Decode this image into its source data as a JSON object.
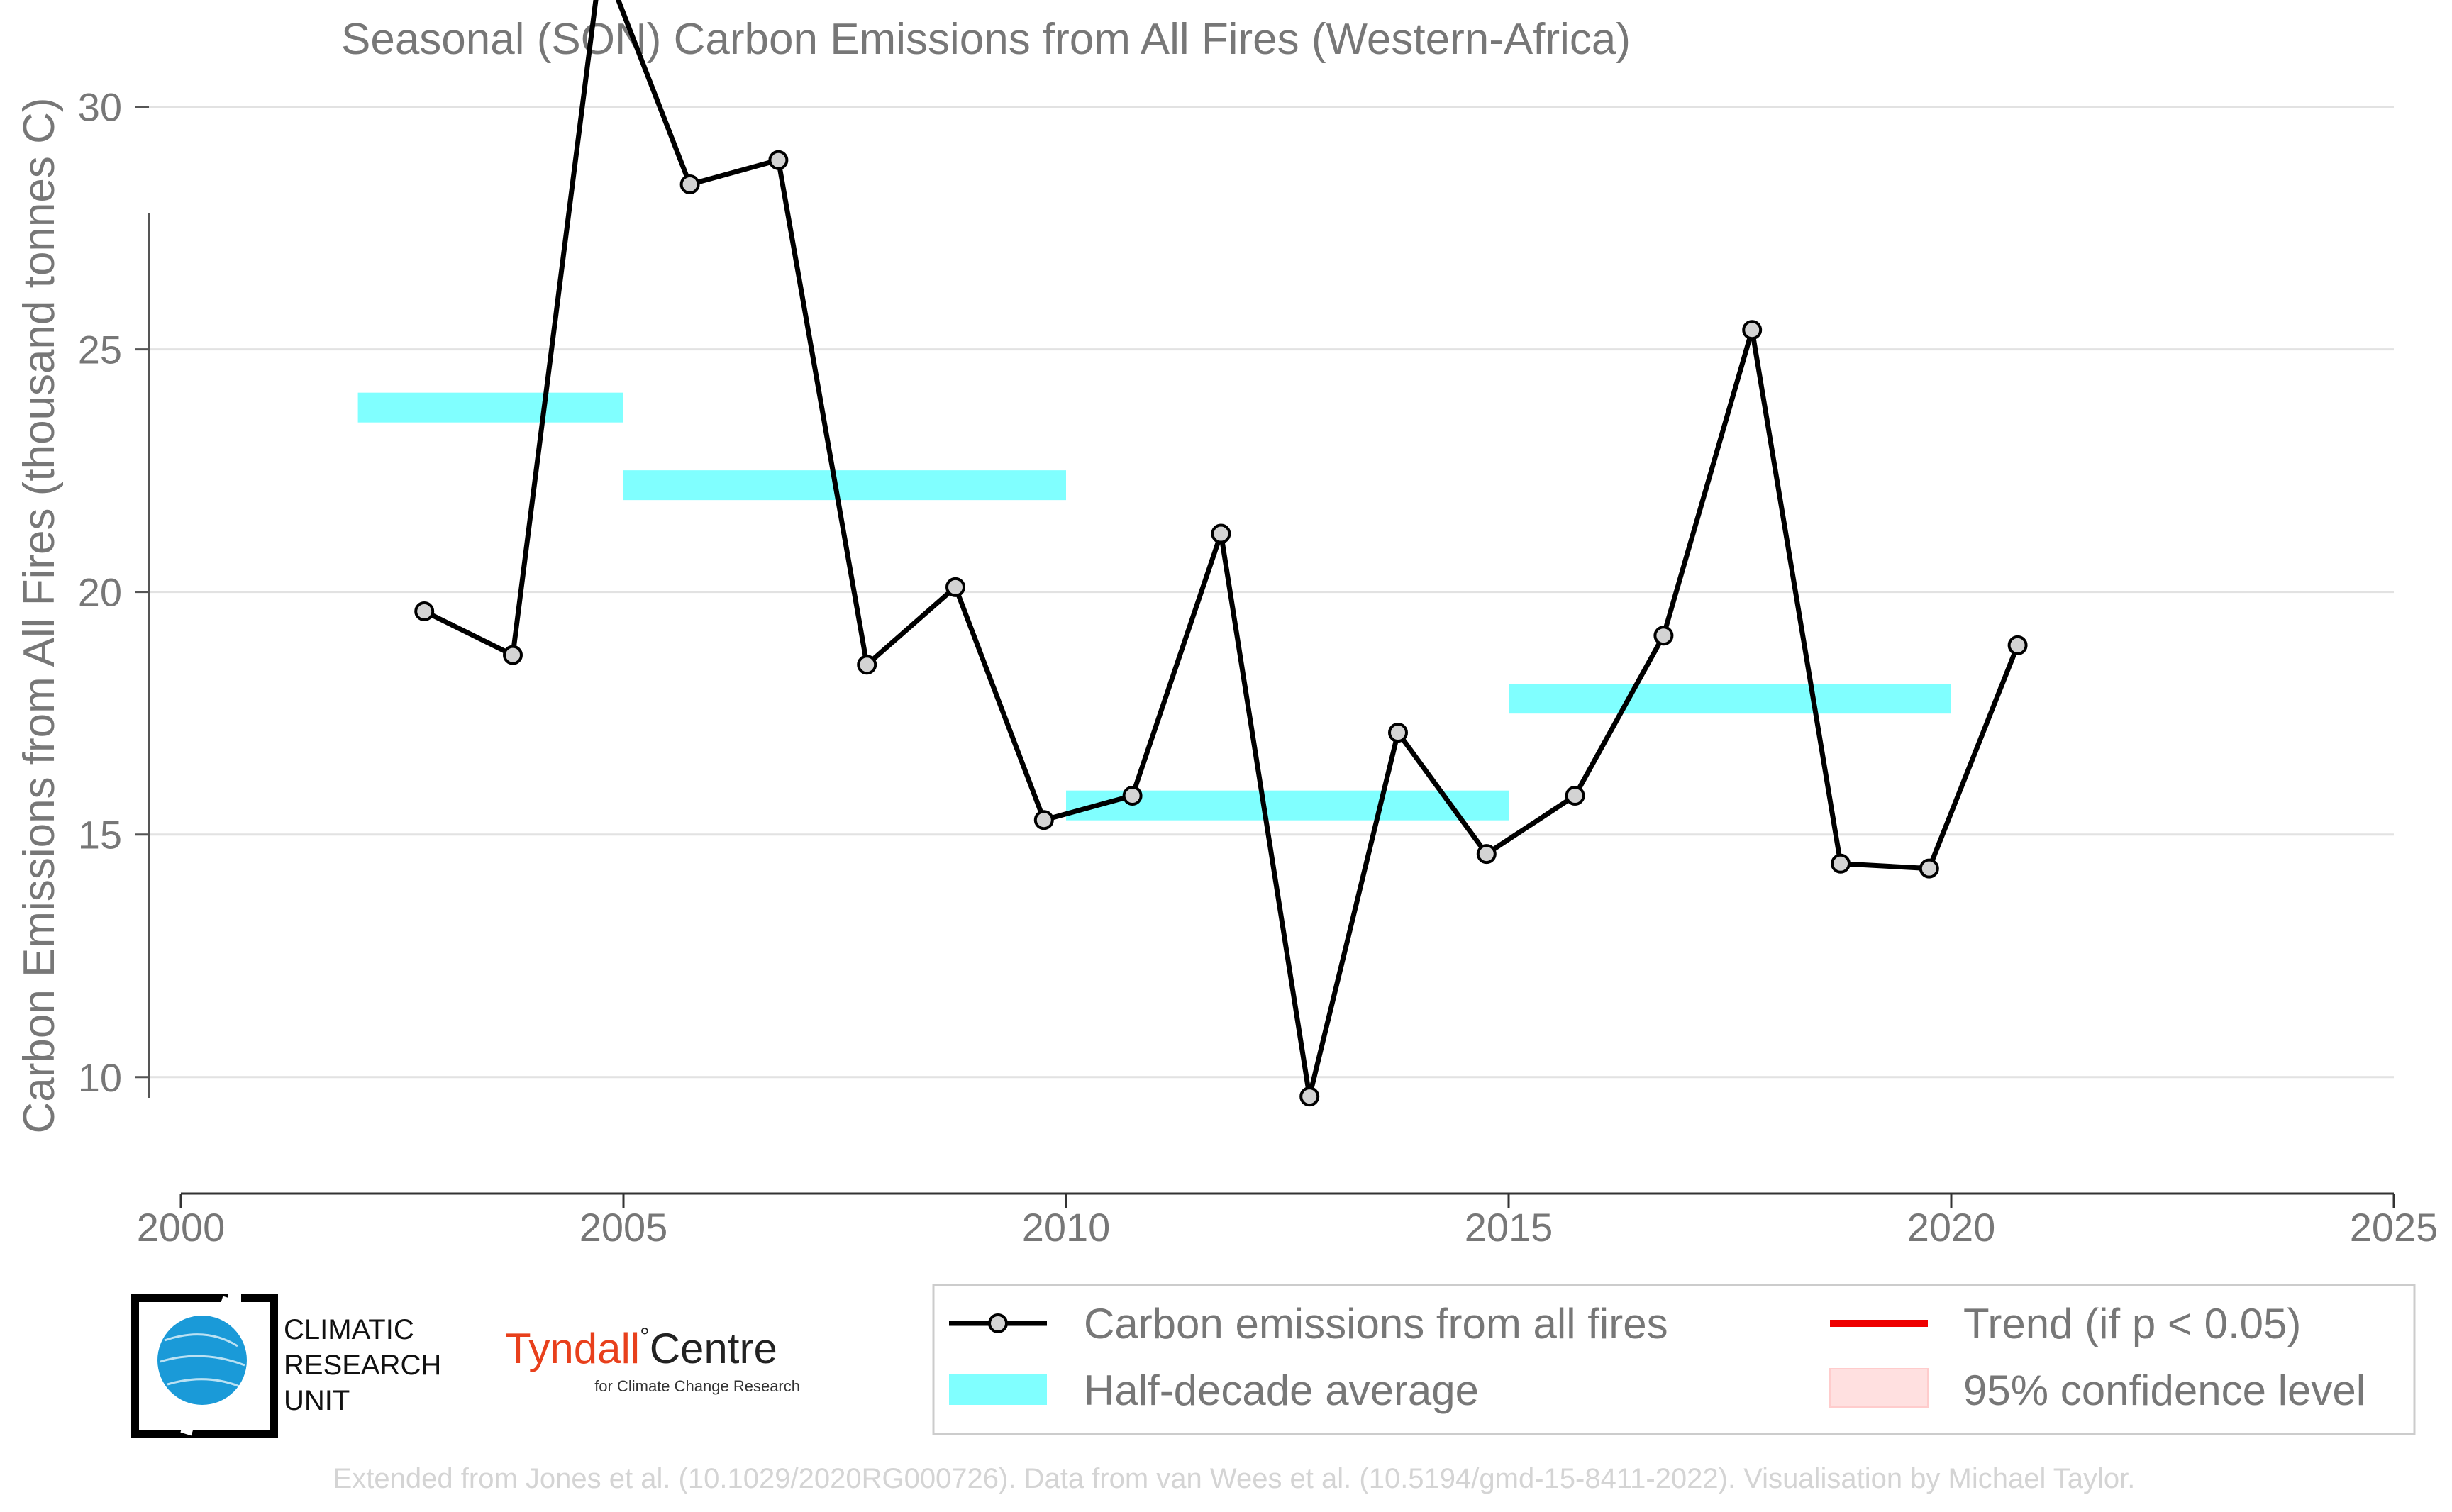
{
  "chart_data": {
    "type": "line",
    "title": "Seasonal (SON) Carbon Emissions from All Fires (Western-Africa)",
    "xlabel": "",
    "ylabel": "Carbon Emissions from All Fires (thousand tonnes C)",
    "xlim": [
      2000,
      2025
    ],
    "ylim": [
      7.6,
      32.2
    ],
    "x_ticks": [
      2000,
      2005,
      2010,
      2015,
      2020,
      2025
    ],
    "y_ticks": [
      10,
      15,
      20,
      25,
      30
    ],
    "grid": "horizontal",
    "legend_position": "bottom-right",
    "series": [
      {
        "name": "Carbon emissions from all fires",
        "color": "#000000",
        "marker_fill": "#d3d3d3",
        "x": [
          2002.75,
          2003.75,
          2004.75,
          2005.75,
          2006.75,
          2007.75,
          2008.75,
          2009.75,
          2010.75,
          2011.75,
          2012.75,
          2013.75,
          2014.75,
          2015.75,
          2016.75,
          2017.75,
          2018.75,
          2019.75,
          2020.75
        ],
        "values": [
          19.6,
          18.7,
          33.1,
          28.4,
          28.9,
          18.5,
          20.1,
          15.3,
          15.8,
          21.2,
          9.6,
          17.1,
          14.6,
          15.8,
          19.1,
          25.4,
          14.4,
          14.3,
          18.9
        ]
      }
    ],
    "half_decade_averages": {
      "name": "Half-decade average",
      "color": "#80ffff",
      "segments": [
        {
          "x_start": 2002,
          "x_end": 2005,
          "value": 23.8
        },
        {
          "x_start": 2005,
          "x_end": 2010,
          "value": 22.2
        },
        {
          "x_start": 2010,
          "x_end": 2015,
          "value": 15.6
        },
        {
          "x_start": 2015,
          "x_end": 2020,
          "value": 17.8
        }
      ]
    },
    "legend": [
      {
        "label": "Carbon emissions from all fires",
        "kind": "line-marker",
        "color": "#000000"
      },
      {
        "label": "Trend (if p < 0.05)",
        "kind": "line",
        "color": "#ee0000"
      },
      {
        "label": "Half-decade average",
        "kind": "band",
        "color": "#80ffff"
      },
      {
        "label": "95% confidence level",
        "kind": "patch",
        "color": "#ffe0e0"
      }
    ]
  },
  "logos": {
    "cru_lines": [
      "CLIMATIC",
      "RESEARCH",
      "UNIT"
    ],
    "tyndall_name": "Tyndall",
    "tyndall_degree": "°",
    "tyndall_centre": "Centre",
    "tyndall_sub": "for Climate Change Research"
  },
  "credit": "Extended from Jones et al. (10.1029/2020RG000726). Data from van Wees et al. (10.5194/gmd-15-8411-2022). Visualisation by Michael Taylor."
}
